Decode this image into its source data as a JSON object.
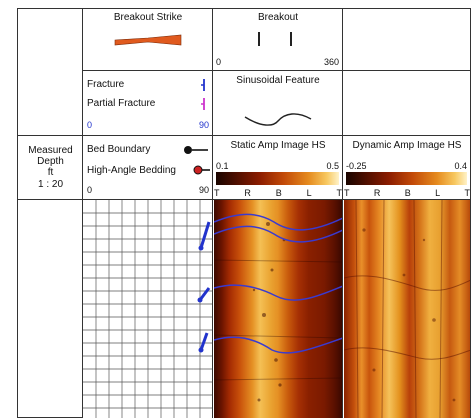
{
  "header": {
    "breakout_strike": {
      "label": "Breakout Strike"
    },
    "breakout": {
      "label": "Breakout",
      "scale_min": "0",
      "scale_max": "360"
    },
    "fracture": {
      "label": "Fracture"
    },
    "partial_fracture": {
      "label": "Partial Fracture",
      "scale_min": "0",
      "scale_max": "90"
    },
    "sinusoidal": {
      "label": "Sinusoidal Feature"
    },
    "depth": {
      "line1": "Measured",
      "line2": "Depth",
      "line3": "ft",
      "line4": "1 : 20"
    },
    "bed_boundary": {
      "label": "Bed Boundary"
    },
    "high_angle_bedding": {
      "label": "High-Angle Bedding",
      "scale_min": "0",
      "scale_max": "90"
    },
    "static_amp": {
      "title": "Static Amp Image HS",
      "min": "0.1",
      "max": "0.5",
      "ticks": [
        "T",
        "R",
        "B",
        "L",
        "T"
      ]
    },
    "dynamic_amp": {
      "title": "Dynamic Amp Image HS",
      "min": "-0.25",
      "max": "0.4",
      "ticks": [
        "T",
        "R",
        "B",
        "L",
        "T"
      ]
    }
  },
  "colors": {
    "fracture_marker": "#2233cc",
    "partial_fracture_marker": "#cc33cc",
    "dip_tadpole": "#2233cc",
    "sinusoid": "#3a3ad0",
    "breakout_strike": "#e05a1e",
    "high_angle_bedding_dot": "#cc2222"
  }
}
